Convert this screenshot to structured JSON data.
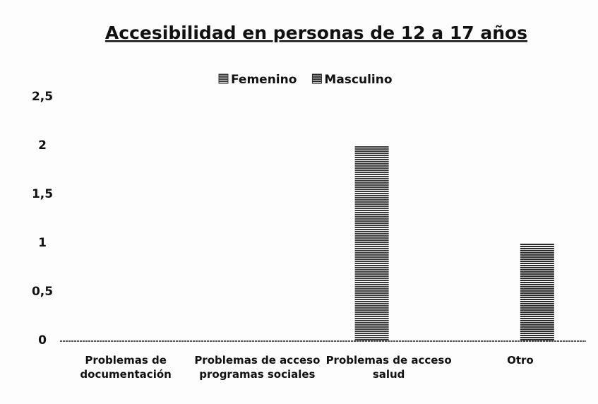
{
  "chart_data": {
    "type": "bar",
    "title": "Accesibilidad en personas de 12 a 17 años",
    "categories": [
      "Problemas de documentación",
      "Problemas de acceso programas sociales",
      "Problemas de acceso salud",
      "Otro"
    ],
    "series": [
      {
        "name": "Femenino",
        "color": "#3a3a3a",
        "values": [
          0,
          0,
          2,
          0
        ]
      },
      {
        "name": "Masculino",
        "color": "#2a2a2a",
        "values": [
          0,
          0,
          0,
          1
        ]
      }
    ],
    "ylim": [
      0,
      2.5
    ],
    "yticks": [
      0,
      {
        "value": 0.5,
        "label": "0,5"
      },
      1,
      {
        "value": 1.5,
        "label": "1,5"
      },
      2,
      {
        "value": 2.5,
        "label": "2,5"
      }
    ],
    "legend": "top",
    "grid": false
  }
}
